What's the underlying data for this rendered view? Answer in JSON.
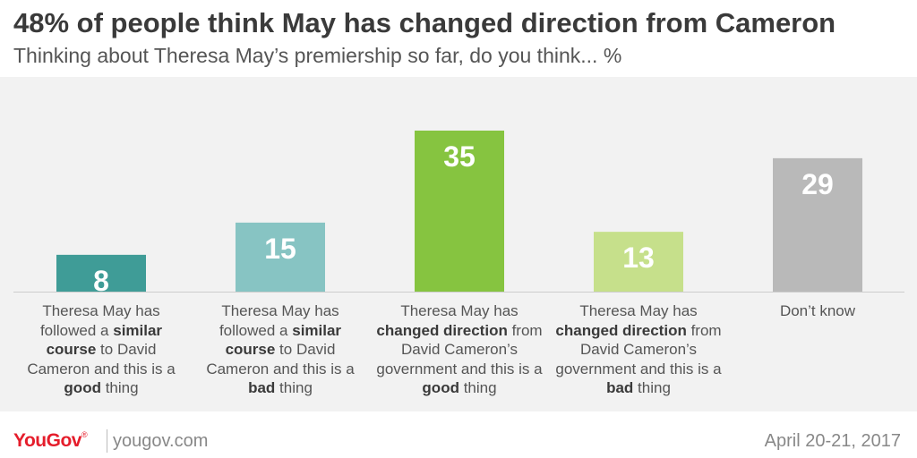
{
  "header": {
    "title": "48% of people think May has changed direction from Cameron",
    "subtitle": "Thinking about Theresa May’s premiership so far, do you think... %"
  },
  "chart_data": {
    "type": "bar",
    "ylim": [
      0,
      35
    ],
    "grid": false,
    "legend": "none",
    "categories": [
      "Theresa May has followed a similar course to David Cameron and this is a good thing",
      "Theresa May has followed a similar course to David Cameron and this is a bad thing",
      "Theresa May has changed direction from David Cameron’s government and this is a good thing",
      "Theresa May has changed direction from David Cameron’s government and this is a bad thing",
      "Don’t know"
    ],
    "category_parts": [
      [
        {
          "t": "Theresa May has followed a ",
          "b": false
        },
        {
          "t": "similar course",
          "b": true
        },
        {
          "t": " to David Cameron and this is a ",
          "b": false
        },
        {
          "t": "good",
          "b": true
        },
        {
          "t": " thing",
          "b": false
        }
      ],
      [
        {
          "t": "Theresa May has followed a ",
          "b": false
        },
        {
          "t": "similar course",
          "b": true
        },
        {
          "t": " to David Cameron and this is a ",
          "b": false
        },
        {
          "t": "bad",
          "b": true
        },
        {
          "t": " thing",
          "b": false
        }
      ],
      [
        {
          "t": "Theresa May has ",
          "b": false
        },
        {
          "t": "changed direction",
          "b": true
        },
        {
          "t": " from David Cameron’s government and this is a ",
          "b": false
        },
        {
          "t": "good",
          "b": true
        },
        {
          "t": " thing",
          "b": false
        }
      ],
      [
        {
          "t": "Theresa May has ",
          "b": false
        },
        {
          "t": "changed direction",
          "b": true
        },
        {
          "t": " from David Cameron’s government and this is a ",
          "b": false
        },
        {
          "t": "bad",
          "b": true
        },
        {
          "t": " thing",
          "b": false
        }
      ],
      [
        {
          "t": "Don’t know",
          "b": false
        }
      ]
    ],
    "values": [
      8,
      15,
      35,
      13,
      29
    ],
    "colors": [
      "#3f9c97",
      "#87c4c3",
      "#86c440",
      "#c6e08b",
      "#b9b9b9"
    ]
  },
  "footer": {
    "logo": "YouGov",
    "logo_mark": "®",
    "site": "yougov.com",
    "date": "April 20-21, 2017"
  }
}
